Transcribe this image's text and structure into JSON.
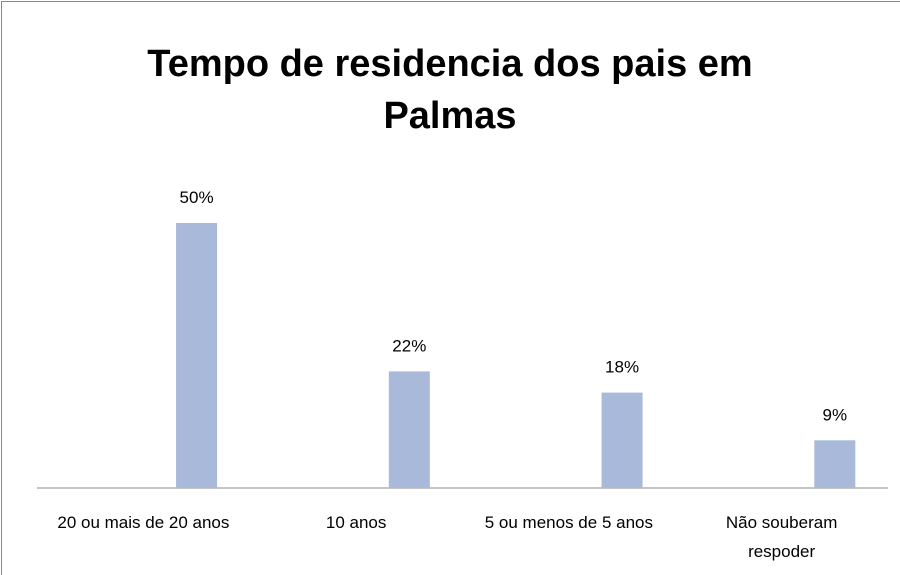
{
  "chart_data": {
    "type": "bar",
    "title": "Tempo de residencia dos pais em Palmas",
    "categories": [
      "20 ou mais de 20 anos",
      "10 anos",
      "5 ou menos de 5 anos",
      "Não souberam respoder"
    ],
    "values": [
      50,
      22,
      18,
      9
    ],
    "value_labels": [
      "50%",
      "22%",
      "18%",
      "9%"
    ],
    "color": "#a9b9d9",
    "ylim": [
      0,
      50
    ]
  }
}
